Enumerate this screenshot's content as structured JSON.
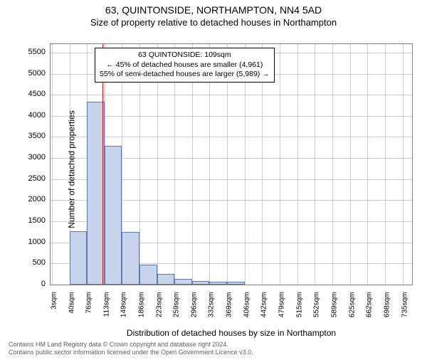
{
  "chart": {
    "type": "histogram",
    "title": "63, QUINTONSIDE, NORTHAMPTON, NN4 5AD",
    "subtitle": "Size of property relative to detached houses in Northampton",
    "xlabel": "Distribution of detached houses by size in Northampton",
    "ylabel": "Number of detached properties",
    "background_color": "#ffffff",
    "grid_color": "#cccccc",
    "axis_color": "#808080",
    "bar_fill": "#c8d4ec",
    "bar_stroke": "#5b78b8",
    "marker_color": "#ff0000",
    "marker_x": 109,
    "xlim": [
      0,
      755
    ],
    "ylim": [
      0,
      5700
    ],
    "yticks": [
      0,
      500,
      1000,
      1500,
      2000,
      2500,
      3000,
      3500,
      4000,
      4500,
      5000,
      5500
    ],
    "xticks": [
      3,
      40,
      76,
      113,
      149,
      186,
      223,
      259,
      296,
      332,
      369,
      406,
      442,
      479,
      515,
      552,
      589,
      625,
      662,
      698,
      735
    ],
    "xtick_labels": [
      "3sqm",
      "40sqm",
      "76sqm",
      "113sqm",
      "149sqm",
      "186sqm",
      "223sqm",
      "259sqm",
      "296sqm",
      "332sqm",
      "369sqm",
      "406sqm",
      "442sqm",
      "479sqm",
      "515sqm",
      "552sqm",
      "589sqm",
      "625sqm",
      "662sqm",
      "698sqm",
      "735sqm"
    ],
    "bin_edges": [
      3,
      40,
      76,
      113,
      149,
      186,
      223,
      259,
      296,
      332,
      369,
      406
    ],
    "bin_counts": [
      0,
      1260,
      4340,
      3290,
      1240,
      480,
      250,
      130,
      90,
      70,
      60
    ],
    "annotation": {
      "line1": "63 QUINTONSIDE: 109sqm",
      "line2": "← 45% of detached houses are smaller (4,961)",
      "line3": "55% of semi-detached houses are larger (5,989) →"
    },
    "title_fontsize": 14,
    "subtitle_fontsize": 13,
    "label_fontsize": 12,
    "tick_fontsize": 11,
    "annotation_fontsize": 10.5
  },
  "footer": {
    "line1": "Contains HM Land Registry data © Crown copyright and database right 2024.",
    "line2": "Contains public sector information licensed under the Open Government Licence v3.0."
  }
}
